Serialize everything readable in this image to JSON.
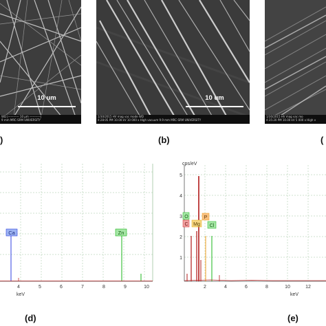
{
  "figure": {
    "panels": [
      {
        "id": "a",
        "label": ")",
        "scale_bar": "10 um"
      },
      {
        "id": "b",
        "label": "(b)",
        "scale_bar": "10 um"
      },
      {
        "id": "c",
        "label": "("
      },
      {
        "id": "d",
        "label": "(d)"
      },
      {
        "id": "e",
        "label": "(e)"
      }
    ],
    "sem_footer": {
      "a_line1": "WD        |———— 10 µm ————|",
      "a_line2": "9 mm     MRC-SRM UNIVERSITY",
      "b_line1": "1/30/2015   HV      mag   vac mode    WD",
      "b_line2": "4:28:05 PM  10.00 kV  10 000 x  High vacuum  9.9 mm   MRC-SRM UNIVERSITY",
      "c_line1": "1/30/2015   HV    mag   vac mo",
      "c_line2": "4:35:20 PM  10.00 kV  5 000 x  High v"
    },
    "eds_d": {
      "peaks": [
        {
          "element": "Ca",
          "kev": 3.69,
          "color": "#2c3fe0"
        },
        {
          "element": "Zn",
          "kev": 8.63,
          "color": "#18b418"
        }
      ],
      "xticks": [
        "4",
        "5",
        "6",
        "7",
        "8",
        "9",
        "10"
      ],
      "xlabel": "keV"
    },
    "eds_e": {
      "yunit": "cps/eV",
      "yticks": [
        "1",
        "2",
        "3",
        "4",
        "5"
      ],
      "xticks": [
        "2",
        "4",
        "6",
        "8",
        "10",
        "12"
      ],
      "xlabel": "keV",
      "element_tags": [
        {
          "element": "O",
          "color": "#18b418"
        },
        {
          "element": "C",
          "color": "#d03030"
        },
        {
          "element": "Mg",
          "color": "#e8b020"
        },
        {
          "element": "P",
          "color": "#f0a020"
        },
        {
          "element": "Cl",
          "color": "#18b418"
        }
      ]
    }
  }
}
